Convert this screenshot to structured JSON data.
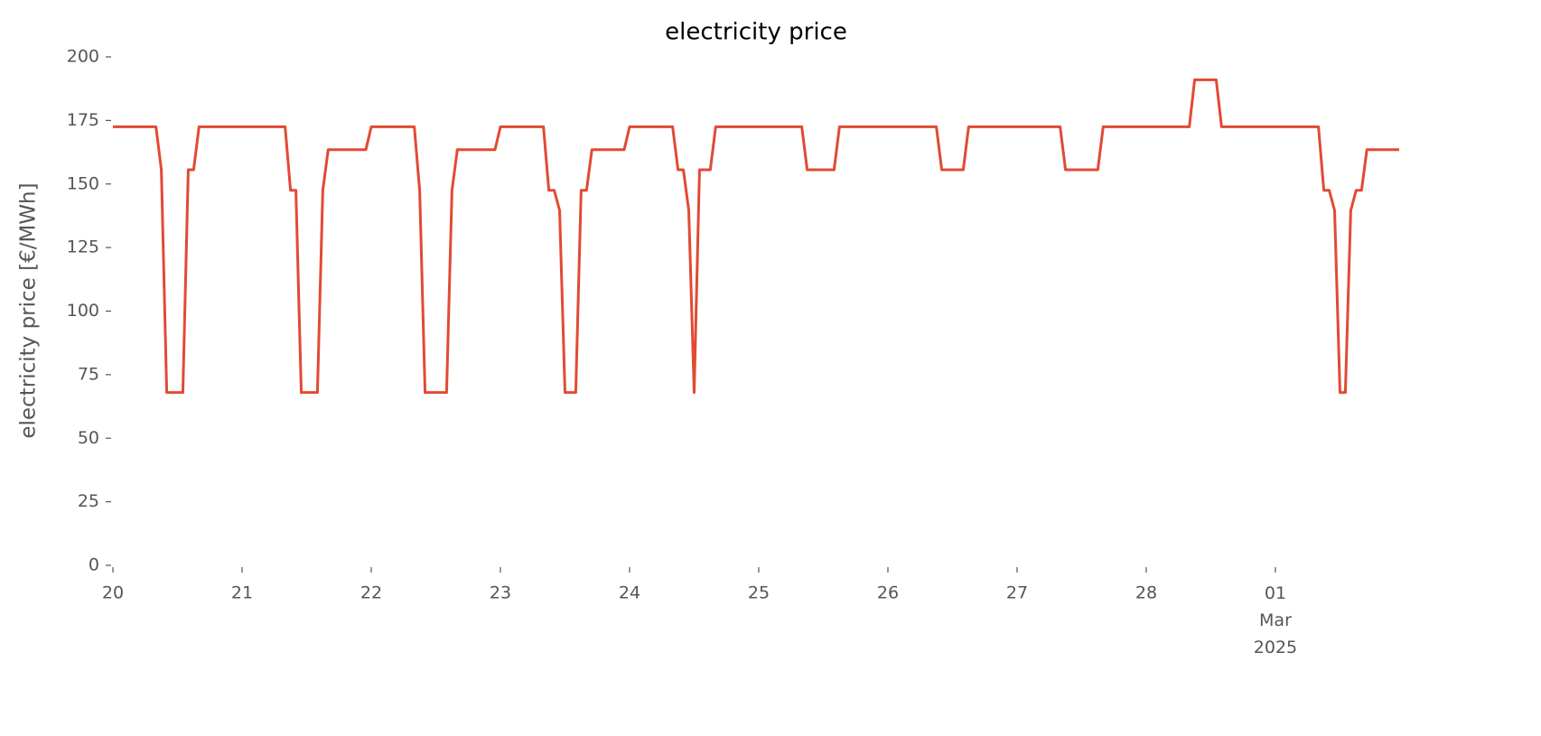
{
  "chart_data": {
    "type": "line",
    "title": "electricity price",
    "ylabel": "electricity price [€/MWh]",
    "x": [
      0,
      1,
      2,
      3,
      4,
      5,
      6,
      7,
      8,
      9,
      10,
      11,
      12,
      13,
      14,
      15,
      16,
      17,
      18,
      19,
      20,
      21,
      22,
      23,
      24,
      25,
      26,
      27,
      28,
      29,
      30,
      31,
      32,
      33,
      34,
      35,
      36,
      37,
      38,
      39,
      40,
      41,
      42,
      43,
      44,
      45,
      46,
      47,
      48,
      49,
      50,
      51,
      52,
      53,
      54,
      55,
      56,
      57,
      58,
      59,
      60,
      61,
      62,
      63,
      64,
      65,
      66,
      67,
      68,
      69,
      70,
      71,
      72,
      73,
      74,
      75,
      76,
      77,
      78,
      79,
      80,
      81,
      82,
      83,
      84,
      85,
      86,
      87,
      88,
      89,
      90,
      91,
      92,
      93,
      94,
      95,
      96,
      97,
      98,
      99,
      100,
      101,
      102,
      103,
      104,
      105,
      106,
      107,
      108,
      109,
      110,
      111,
      112,
      113,
      114,
      115,
      116,
      117,
      118,
      119,
      120,
      121,
      122,
      123,
      124,
      125,
      126,
      127,
      128,
      129,
      130,
      131,
      132,
      133,
      134,
      135,
      136,
      137,
      138,
      139,
      140,
      141,
      142,
      143,
      144,
      145,
      146,
      147,
      148,
      149,
      150,
      151,
      152,
      153,
      154,
      155,
      156,
      157,
      158,
      159,
      160,
      161,
      162,
      163,
      164,
      165,
      166,
      167,
      168,
      169,
      170,
      171,
      172,
      173,
      174,
      175,
      176,
      177,
      178,
      179,
      180,
      181,
      182,
      183,
      184,
      185,
      186,
      187,
      188,
      189,
      190,
      191,
      192,
      193,
      194,
      195,
      196,
      197,
      198,
      199,
      200,
      201,
      202,
      203,
      204,
      205,
      206,
      207,
      208,
      209,
      210,
      211,
      212,
      213,
      214,
      215,
      216,
      217,
      218,
      219,
      220,
      221,
      222,
      223,
      224,
      225,
      226,
      227,
      228,
      229,
      230,
      231,
      232,
      233,
      234,
      235,
      236,
      237,
      238,
      239
    ],
    "series": [
      {
        "name": "electricity price",
        "color": "#e24a33",
        "values": [
          172.5,
          172.5,
          172.5,
          172.5,
          172.5,
          172.5,
          172.5,
          172.5,
          172.5,
          155.6,
          68,
          68,
          68,
          68,
          155.6,
          155.6,
          172.5,
          172.5,
          172.5,
          172.5,
          172.5,
          172.5,
          172.5,
          172.5,
          172.5,
          172.5,
          172.5,
          172.5,
          172.5,
          172.5,
          172.5,
          172.5,
          172.5,
          147.5,
          147.5,
          68,
          68,
          68,
          68,
          147.5,
          163.5,
          163.5,
          163.5,
          163.5,
          163.5,
          163.5,
          163.5,
          163.5,
          172.5,
          172.5,
          172.5,
          172.5,
          172.5,
          172.5,
          172.5,
          172.5,
          172.5,
          147.5,
          68,
          68,
          68,
          68,
          68,
          147.5,
          163.5,
          163.5,
          163.5,
          163.5,
          163.5,
          163.5,
          163.5,
          163.5,
          172.5,
          172.5,
          172.5,
          172.5,
          172.5,
          172.5,
          172.5,
          172.5,
          172.5,
          147.5,
          147.5,
          139.6,
          68,
          68,
          68,
          147.5,
          147.5,
          163.5,
          163.5,
          163.5,
          163.5,
          163.5,
          163.5,
          163.5,
          172.5,
          172.5,
          172.5,
          172.5,
          172.5,
          172.5,
          172.5,
          172.5,
          172.5,
          155.6,
          155.6,
          139.6,
          68,
          155.6,
          155.6,
          155.6,
          172.5,
          172.5,
          172.5,
          172.5,
          172.5,
          172.5,
          172.5,
          172.5,
          172.5,
          172.5,
          172.5,
          172.5,
          172.5,
          172.5,
          172.5,
          172.5,
          172.5,
          155.6,
          155.6,
          155.6,
          155.6,
          155.6,
          155.6,
          172.5,
          172.5,
          172.5,
          172.5,
          172.5,
          172.5,
          172.5,
          172.5,
          172.5,
          172.5,
          172.5,
          172.5,
          172.5,
          172.5,
          172.5,
          172.5,
          172.5,
          172.5,
          172.5,
          155.6,
          155.6,
          155.6,
          155.6,
          155.6,
          172.5,
          172.5,
          172.5,
          172.5,
          172.5,
          172.5,
          172.5,
          172.5,
          172.5,
          172.5,
          172.5,
          172.5,
          172.5,
          172.5,
          172.5,
          172.5,
          172.5,
          172.5,
          155.6,
          155.6,
          155.6,
          155.6,
          155.6,
          155.6,
          155.6,
          172.5,
          172.5,
          172.5,
          172.5,
          172.5,
          172.5,
          172.5,
          172.5,
          172.5,
          172.5,
          172.5,
          172.5,
          172.5,
          172.5,
          172.5,
          172.5,
          172.5,
          191,
          191,
          191,
          191,
          191,
          172.5,
          172.5,
          172.5,
          172.5,
          172.5,
          172.5,
          172.5,
          172.5,
          172.5,
          172.5,
          172.5,
          172.5,
          172.5,
          172.5,
          172.5,
          172.5,
          172.5,
          172.5,
          172.5,
          147.5,
          147.5,
          139.6,
          68,
          68,
          139.6,
          147.5,
          147.5,
          163.5,
          163.5,
          163.5,
          163.5,
          163.5,
          163.5,
          163.5
        ]
      }
    ],
    "xlim": [
      0,
      239
    ],
    "xticks": [
      {
        "value": 0,
        "label": "20"
      },
      {
        "value": 24,
        "label": "21"
      },
      {
        "value": 48,
        "label": "22"
      },
      {
        "value": 72,
        "label": "23"
      },
      {
        "value": 96,
        "label": "24"
      },
      {
        "value": 120,
        "label": "25"
      },
      {
        "value": 144,
        "label": "26"
      },
      {
        "value": 168,
        "label": "27"
      },
      {
        "value": 192,
        "label": "28"
      },
      {
        "value": 216,
        "label": "01\nMar\n2025"
      }
    ],
    "ylim": [
      0,
      200
    ],
    "yticks": [
      0,
      25,
      50,
      75,
      100,
      125,
      150,
      175,
      200
    ],
    "grid": false
  }
}
